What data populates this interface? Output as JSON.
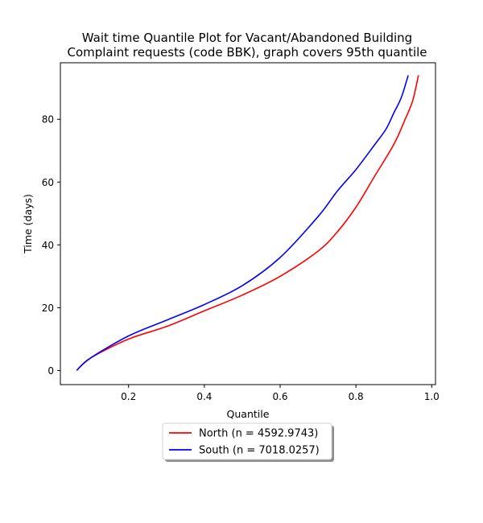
{
  "chart_data": {
    "type": "line",
    "title": [
      "Wait time Quantile Plot for Vacant/Abandoned Building",
      "Complaint  requests (code BBK), graph covers 95th quantile"
    ],
    "xlabel": "Quantile",
    "ylabel": "Time (days)",
    "xlim": [
      0.02,
      1.01
    ],
    "ylim": [
      -4.5,
      98
    ],
    "xticks": [
      0.2,
      0.4,
      0.6,
      0.8,
      1.0
    ],
    "xtick_labels": [
      "0.2",
      "0.4",
      "0.6",
      "0.8",
      "1.0"
    ],
    "yticks": [
      0,
      20,
      40,
      60,
      80
    ],
    "ytick_labels": [
      "0",
      "20",
      "40",
      "60",
      "80"
    ],
    "grid": false,
    "legend_position": "below plot, centered",
    "series": [
      {
        "name": "North (n = 4592.9743)",
        "color": "#ff0000",
        "x": [
          0.063,
          0.1,
          0.2,
          0.3,
          0.4,
          0.5,
          0.6,
          0.7,
          0.75,
          0.8,
          0.85,
          0.9,
          0.93,
          0.95,
          0.965
        ],
        "y": [
          0,
          4,
          10,
          14,
          19,
          24,
          30,
          38,
          44,
          52,
          62,
          72,
          80,
          86,
          94
        ]
      },
      {
        "name": "South (n = 7018.0257)",
        "color": "#0000ff",
        "x": [
          0.063,
          0.1,
          0.2,
          0.3,
          0.4,
          0.5,
          0.6,
          0.7,
          0.75,
          0.8,
          0.85,
          0.88,
          0.9,
          0.92,
          0.938
        ],
        "y": [
          0,
          4,
          11,
          16,
          21,
          27,
          36,
          49,
          57,
          64,
          72,
          77,
          82,
          87,
          94
        ]
      }
    ]
  }
}
